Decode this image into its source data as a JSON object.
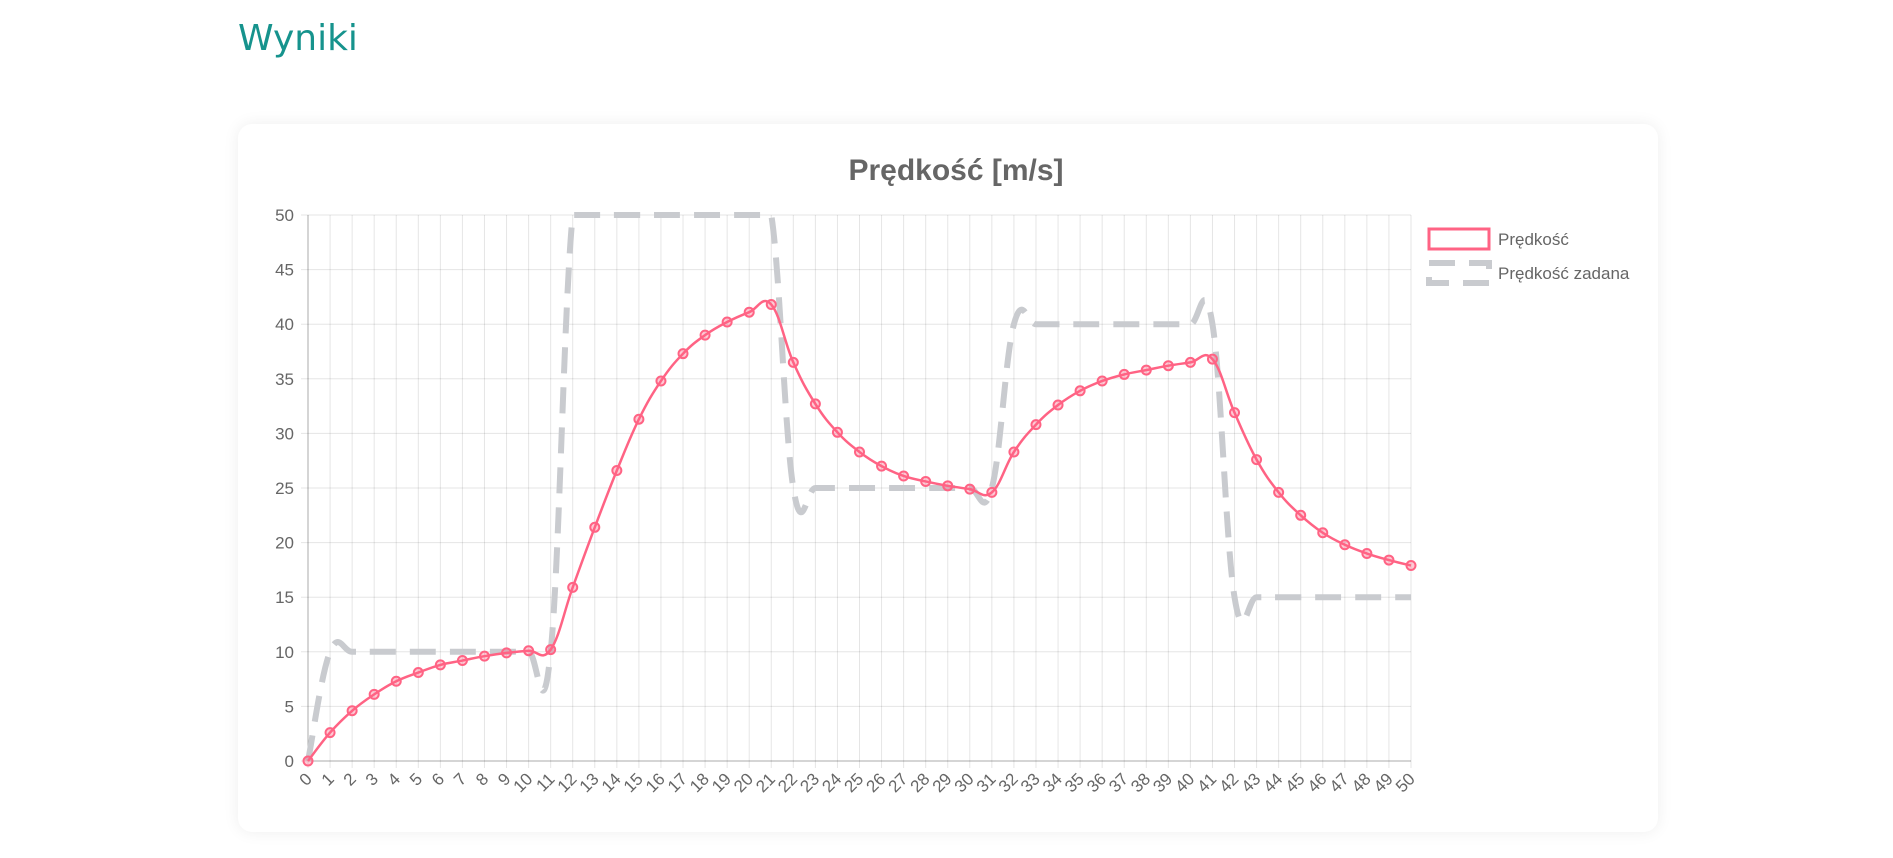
{
  "page": {
    "heading": "Wyniki"
  },
  "chart_data": {
    "type": "line",
    "title": "Prędkość [m/s]",
    "xlabel": "",
    "ylabel": "",
    "ylim": [
      0,
      50
    ],
    "yticks": [
      0,
      5,
      10,
      15,
      20,
      25,
      30,
      35,
      40,
      45,
      50
    ],
    "grid": true,
    "legend_position": "right",
    "x": [
      0,
      1,
      2,
      3,
      4,
      5,
      6,
      7,
      8,
      9,
      10,
      11,
      12,
      13,
      14,
      15,
      16,
      17,
      18,
      19,
      20,
      21,
      22,
      23,
      24,
      25,
      26,
      27,
      28,
      29,
      30,
      31,
      32,
      33,
      34,
      35,
      36,
      37,
      38,
      39,
      40,
      41,
      42,
      43,
      44,
      45,
      46,
      47,
      48,
      49,
      50
    ],
    "series": [
      {
        "name": "Prędkość",
        "color": "#ff6384",
        "style": "solid",
        "points": true,
        "values": [
          0,
          2.6,
          4.6,
          6.1,
          7.3,
          8.1,
          8.8,
          9.2,
          9.6,
          9.9,
          10.1,
          10.2,
          15.9,
          21.4,
          26.6,
          31.3,
          34.8,
          37.3,
          39.0,
          40.2,
          41.1,
          41.8,
          36.5,
          32.7,
          30.1,
          28.3,
          27.0,
          26.1,
          25.6,
          25.2,
          24.9,
          24.6,
          28.3,
          30.8,
          32.6,
          33.9,
          34.8,
          35.4,
          35.8,
          36.2,
          36.5,
          36.8,
          31.9,
          27.6,
          24.6,
          22.5,
          20.9,
          19.8,
          19.0,
          18.4,
          17.9
        ]
      },
      {
        "name": "Prędkość zadana",
        "color": "#c9cbcf",
        "style": "dashed",
        "points": false,
        "values": [
          0,
          10,
          10,
          10,
          10,
          10,
          10,
          10,
          10,
          10,
          10,
          10,
          50,
          50,
          50,
          50,
          50,
          50,
          50,
          50,
          50,
          50,
          25,
          25,
          25,
          25,
          25,
          25,
          25,
          25,
          25,
          25,
          40,
          40,
          40,
          40,
          40,
          40,
          40,
          40,
          40,
          40,
          15,
          15,
          15,
          15,
          15,
          15,
          15,
          15,
          15
        ]
      }
    ]
  }
}
